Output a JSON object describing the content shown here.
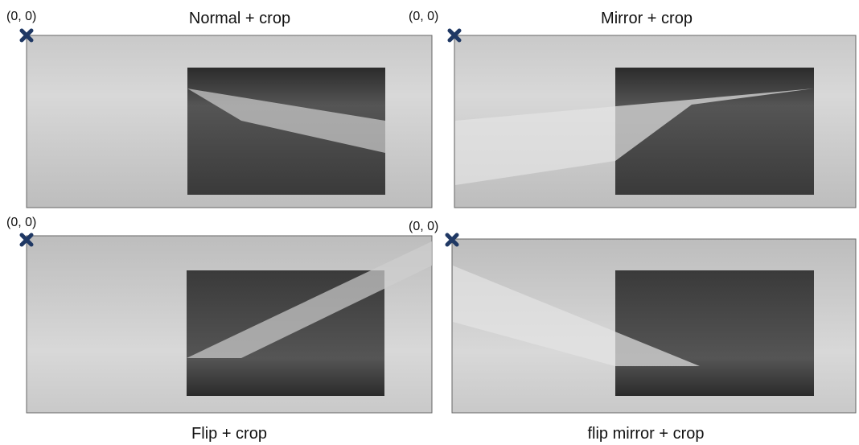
{
  "panels": [
    {
      "title": "Normal + crop",
      "origin_label": "(0, 0)"
    },
    {
      "title": "Mirror + crop",
      "origin_label": "(0, 0)"
    },
    {
      "title": "Flip + crop",
      "origin_label": "(0, 0)"
    },
    {
      "title": "flip mirror + crop",
      "origin_label": "(0, 0)"
    }
  ]
}
